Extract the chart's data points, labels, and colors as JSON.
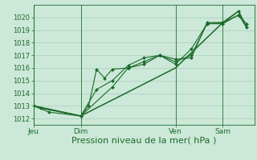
{
  "background_color": "#cce8d8",
  "grid_color": "#aaccb8",
  "line_color": "#1a6b2a",
  "marker_color": "#1a6b2a",
  "xlabel": "Pression niveau de la mer( hPa )",
  "xlabel_fontsize": 8,
  "ylim": [
    1011.5,
    1021.0
  ],
  "yticks": [
    1012,
    1013,
    1014,
    1015,
    1016,
    1017,
    1018,
    1019,
    1020
  ],
  "ytick_fontsize": 6,
  "xtick_fontsize": 6.5,
  "day_labels": [
    "Jeu",
    "Dim",
    "Ven",
    "Sam"
  ],
  "day_positions": [
    0,
    36,
    108,
    144
  ],
  "total_hours": 168,
  "series1": {
    "x": [
      0,
      6,
      36,
      42,
      48,
      54,
      60,
      72,
      84,
      96,
      108,
      120,
      132,
      144,
      156,
      162
    ],
    "y": [
      1013.0,
      1012.8,
      1012.2,
      1013.0,
      1015.9,
      1015.2,
      1015.9,
      1016.0,
      1016.5,
      1017.0,
      1016.3,
      1017.5,
      1019.5,
      1019.5,
      1020.2,
      1019.5
    ]
  },
  "series2": {
    "x": [
      0,
      12,
      36,
      48,
      60,
      72,
      84,
      96,
      108,
      120,
      132,
      144,
      156
    ],
    "y": [
      1013.0,
      1012.5,
      1012.2,
      1014.3,
      1015.0,
      1016.2,
      1016.8,
      1017.0,
      1016.7,
      1016.8,
      1019.6,
      1019.6,
      1020.5
    ]
  },
  "series3": {
    "x": [
      0,
      36,
      60,
      72,
      84,
      96,
      108,
      120,
      132,
      144,
      156,
      162
    ],
    "y": [
      1013.0,
      1012.2,
      1014.5,
      1016.0,
      1016.3,
      1017.0,
      1016.5,
      1017.0,
      1019.5,
      1019.6,
      1020.2,
      1019.2
    ]
  },
  "series4": {
    "x": [
      0,
      36,
      108,
      144,
      156,
      162
    ],
    "y": [
      1013.0,
      1012.2,
      1016.0,
      1019.6,
      1020.5,
      1019.2
    ]
  }
}
